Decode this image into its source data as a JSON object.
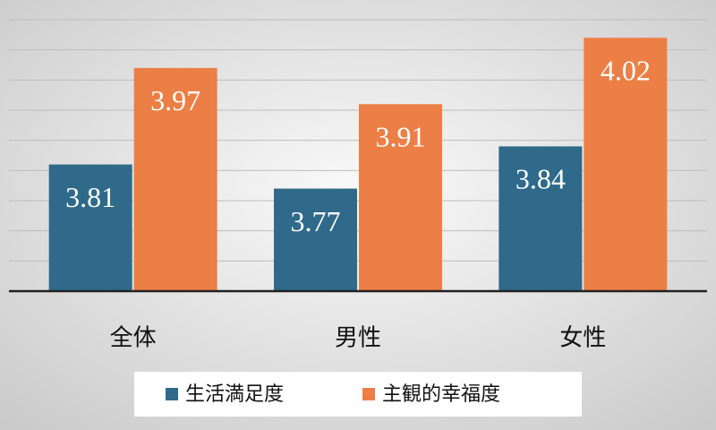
{
  "chart_data": {
    "type": "bar",
    "categories": [
      "全体",
      "男性",
      "女性"
    ],
    "series": [
      {
        "name": "生活満足度",
        "color": "#2f6a8b",
        "values": [
          3.81,
          3.77,
          3.84
        ]
      },
      {
        "name": "主観的幸福度",
        "color": "#ec7f45",
        "values": [
          3.97,
          3.91,
          4.02
        ]
      }
    ],
    "ylim": [
      3.6,
      4.05
    ],
    "yticks": [
      3.6,
      3.65,
      3.7,
      3.75,
      3.8,
      3.85,
      3.9,
      3.95,
      4.0,
      4.05
    ],
    "grid": true
  }
}
